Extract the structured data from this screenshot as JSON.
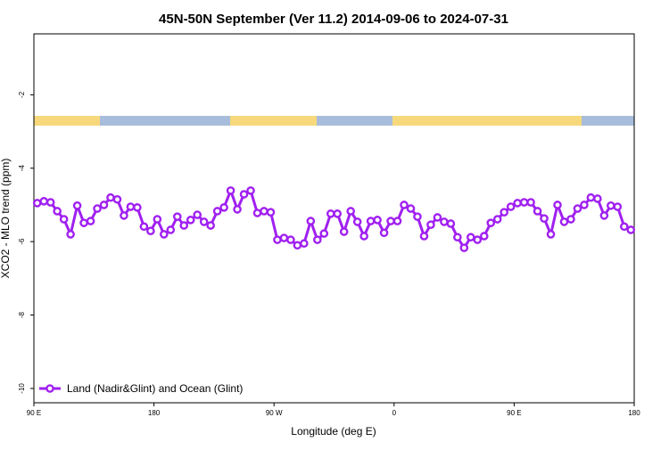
{
  "chart_data": {
    "type": "line",
    "title": "45N-50N September (Ver 11.2)   2014-09-06 to 2024-07-31",
    "x_label": "Longitude (deg E)",
    "y_label": "XCO2 - MLO trend (ppm)",
    "xlim": [
      90,
      540
    ],
    "xticks": [
      {
        "value": 90,
        "label": "90 E"
      },
      {
        "value": 180,
        "label": "180"
      },
      {
        "value": 270,
        "label": "90 W"
      },
      {
        "value": 360,
        "label": "0"
      },
      {
        "value": 450,
        "label": "90 E"
      },
      {
        "value": 540,
        "label": "180"
      }
    ],
    "ylim": [
      -10.39,
      -0.34
    ],
    "yticks": [
      -10,
      -8,
      -6,
      -4,
      -2
    ],
    "legend": "bottom-left",
    "x": [
      92.5,
      97.5,
      102.5,
      107.5,
      112.5,
      117.5,
      122.5,
      127.5,
      132.5,
      137.5,
      142.5,
      147.5,
      152.5,
      157.5,
      162.5,
      167.5,
      172.5,
      177.5,
      182.5,
      187.5,
      192.5,
      197.5,
      202.5,
      207.5,
      212.5,
      217.5,
      222.5,
      227.5,
      232.5,
      237.5,
      242.5,
      247.5,
      252.5,
      257.5,
      262.5,
      267.5,
      272.5,
      277.5,
      282.5,
      287.5,
      292.5,
      297.5,
      302.5,
      307.5,
      312.5,
      317.5,
      322.5,
      327.5,
      332.5,
      337.5,
      342.5,
      347.5,
      352.5,
      357.5,
      362.5,
      367.5,
      372.5,
      377.5,
      382.5,
      387.5,
      392.5,
      397.5,
      402.5,
      407.5,
      412.5,
      417.5,
      422.5,
      427.5,
      432.5,
      437.5,
      442.5,
      447.5,
      452.5,
      457.5,
      462.5,
      467.5,
      472.5,
      477.5,
      482.5,
      487.5,
      492.5,
      497.5,
      502.5,
      507.5,
      512.5,
      517.5,
      522.5,
      527.5,
      532.5,
      537.5
    ],
    "series": [
      {
        "name": "Land (Nadir&Glint) and Ocean (Glint)",
        "color": "#a020f0",
        "values": [
          -4.95,
          -4.9,
          -4.93,
          -5.17,
          -5.39,
          -5.8,
          -5.02,
          -5.49,
          -5.44,
          -5.1,
          -5.0,
          -4.8,
          -4.85,
          -5.29,
          -5.05,
          -5.07,
          -5.59,
          -5.71,
          -5.39,
          -5.8,
          -5.68,
          -5.32,
          -5.56,
          -5.41,
          -5.27,
          -5.46,
          -5.56,
          -5.17,
          -5.07,
          -4.61,
          -5.12,
          -4.71,
          -4.61,
          -5.22,
          -5.17,
          -5.2,
          -5.95,
          -5.9,
          -5.95,
          -6.1,
          -6.05,
          -5.44,
          -5.95,
          -5.78,
          -5.24,
          -5.24,
          -5.73,
          -5.17,
          -5.46,
          -5.85,
          -5.44,
          -5.41,
          -5.76,
          -5.44,
          -5.44,
          -5.0,
          -5.1,
          -5.32,
          -5.85,
          -5.54,
          -5.34,
          -5.46,
          -5.51,
          -5.88,
          -6.17,
          -5.88,
          -5.95,
          -5.85,
          -5.49,
          -5.39,
          -5.2,
          -5.05,
          -4.95,
          -4.93,
          -4.93,
          -5.17,
          -5.37,
          -5.8,
          -5.0,
          -5.46,
          -5.39,
          -5.1,
          -5.0,
          -4.8,
          -4.83,
          -5.29,
          -5.02,
          -5.05,
          -5.59,
          -5.68
        ]
      }
    ]
  }
}
